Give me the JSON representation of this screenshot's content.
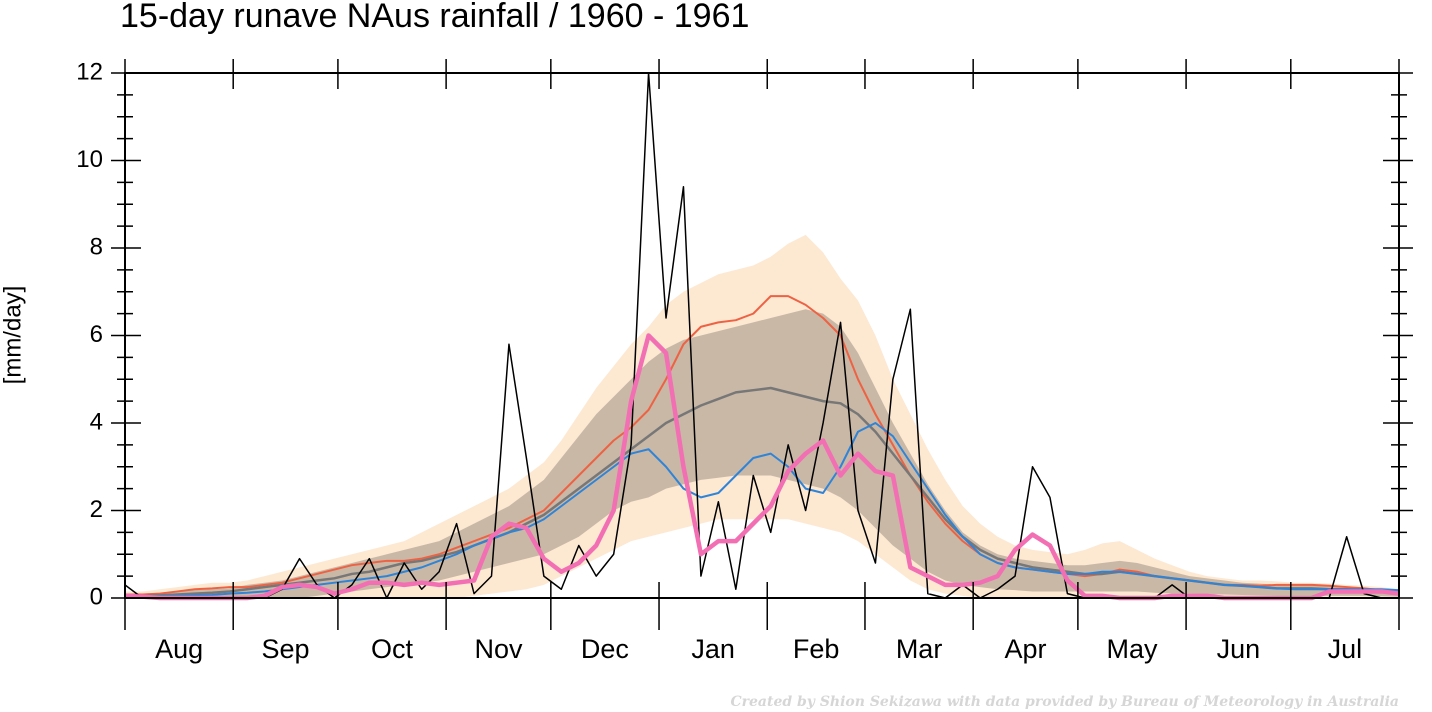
{
  "chart_data": {
    "type": "line",
    "title": "15-day runave NAus rainfall  /  1960 - 1961",
    "ylabel": "[mm/day]",
    "footer": "Created by Shion Sekizawa with data provided by Bureau of Meteorology in Australia",
    "x": [
      0,
      5,
      10,
      15,
      20,
      25,
      30,
      35,
      40,
      45,
      50,
      55,
      60,
      65,
      70,
      75,
      80,
      85,
      90,
      95,
      100,
      105,
      110,
      115,
      120,
      125,
      130,
      135,
      140,
      145,
      150,
      155,
      160,
      165,
      170,
      175,
      180,
      185,
      190,
      195,
      200,
      205,
      210,
      215,
      220,
      225,
      230,
      235,
      240,
      245,
      250,
      255,
      260,
      265,
      270,
      275,
      280,
      285,
      290,
      295,
      300,
      305,
      310,
      315,
      320,
      325,
      330,
      335,
      340,
      345,
      350,
      355,
      360,
      365
    ],
    "xlim": [
      0,
      365
    ],
    "xticks": [
      {
        "value": 15.5,
        "label": "Aug"
      },
      {
        "value": 46,
        "label": "Sep"
      },
      {
        "value": 76.5,
        "label": "Oct"
      },
      {
        "value": 107,
        "label": "Nov"
      },
      {
        "value": 137.5,
        "label": "Dec"
      },
      {
        "value": 168.5,
        "label": "Jan"
      },
      {
        "value": 198,
        "label": "Feb"
      },
      {
        "value": 227.5,
        "label": "Mar"
      },
      {
        "value": 258,
        "label": "Apr"
      },
      {
        "value": 288.5,
        "label": "May"
      },
      {
        "value": 319,
        "label": "Jun"
      },
      {
        "value": 349.5,
        "label": "Jul"
      }
    ],
    "x_major_ticks": [
      0,
      31,
      61,
      92,
      122,
      153,
      184,
      212,
      243,
      273,
      304,
      334,
      365
    ],
    "ylim": [
      0,
      12
    ],
    "yticks": [
      0,
      2,
      4,
      6,
      8,
      10,
      12
    ],
    "yminorticks": [
      0.5,
      1,
      1.5,
      2.5,
      3,
      3.5,
      4.5,
      5,
      5.5,
      6.5,
      7,
      7.5,
      8.5,
      9,
      9.5,
      10.5,
      11,
      11.5
    ],
    "bands": [
      {
        "color": "#fde8d2",
        "upper": [
          0.15,
          0.15,
          0.2,
          0.25,
          0.3,
          0.35,
          0.35,
          0.4,
          0.5,
          0.6,
          0.7,
          0.8,
          0.9,
          1.0,
          1.1,
          1.2,
          1.3,
          1.5,
          1.7,
          1.9,
          2.1,
          2.3,
          2.5,
          2.8,
          3.1,
          3.6,
          4.2,
          4.8,
          5.3,
          5.8,
          6.2,
          6.7,
          7.0,
          7.2,
          7.4,
          7.5,
          7.6,
          7.8,
          8.1,
          8.3,
          7.9,
          7.3,
          6.8,
          6.0,
          5.0,
          4.2,
          3.4,
          2.7,
          2.1,
          1.7,
          1.4,
          1.2,
          1.1,
          1.05,
          1.0,
          1.1,
          1.25,
          1.3,
          1.1,
          0.9,
          0.75,
          0.6,
          0.5,
          0.45,
          0.4,
          0.4,
          0.38,
          0.35,
          0.35,
          0.33,
          0.3,
          0.28,
          0.25,
          0.2
        ],
        "lower": [
          0,
          0,
          0,
          0,
          0,
          0,
          0,
          0,
          0,
          0,
          0,
          0,
          0,
          0,
          0,
          0,
          0,
          0,
          0,
          0,
          0.05,
          0.1,
          0.15,
          0.2,
          0.3,
          0.5,
          0.7,
          0.9,
          1.1,
          1.3,
          1.4,
          1.5,
          1.6,
          1.7,
          1.8,
          1.8,
          1.8,
          1.8,
          1.8,
          1.7,
          1.6,
          1.5,
          1.3,
          1.0,
          0.7,
          0.4,
          0.2,
          0.1,
          0.05,
          0,
          0,
          0,
          0,
          0,
          0,
          0,
          0,
          0,
          0,
          0,
          0,
          0,
          0,
          0,
          0,
          0,
          0,
          0,
          0,
          0,
          0,
          0,
          0,
          0
        ]
      },
      {
        "color": "#c9b8a6",
        "upper": [
          0.1,
          0.1,
          0.12,
          0.15,
          0.18,
          0.2,
          0.22,
          0.3,
          0.35,
          0.4,
          0.5,
          0.6,
          0.7,
          0.8,
          0.9,
          1.0,
          1.1,
          1.2,
          1.3,
          1.5,
          1.7,
          1.9,
          2.1,
          2.4,
          2.7,
          3.2,
          3.7,
          4.2,
          4.6,
          5.0,
          5.4,
          5.7,
          5.9,
          6.0,
          6.1,
          6.2,
          6.3,
          6.4,
          6.5,
          6.6,
          6.5,
          6.2,
          5.6,
          4.8,
          4.0,
          3.3,
          2.6,
          2.0,
          1.5,
          1.2,
          1.0,
          0.9,
          0.85,
          0.8,
          0.75,
          0.75,
          0.8,
          0.85,
          0.8,
          0.7,
          0.6,
          0.5,
          0.45,
          0.4,
          0.35,
          0.33,
          0.3,
          0.3,
          0.3,
          0.28,
          0.25,
          0.23,
          0.2,
          0.18
        ],
        "lower": [
          0,
          0,
          0,
          0,
          0,
          0,
          0,
          0,
          0,
          0,
          0,
          0.05,
          0.1,
          0.15,
          0.2,
          0.25,
          0.3,
          0.35,
          0.4,
          0.5,
          0.6,
          0.7,
          0.8,
          0.9,
          1.0,
          1.2,
          1.4,
          1.7,
          2.0,
          2.2,
          2.3,
          2.5,
          2.6,
          2.7,
          2.75,
          2.8,
          2.8,
          2.8,
          2.7,
          2.6,
          2.5,
          2.3,
          2.0,
          1.6,
          1.2,
          0.9,
          0.6,
          0.4,
          0.3,
          0.25,
          0.2,
          0.18,
          0.15,
          0.15,
          0.15,
          0.15,
          0.15,
          0.15,
          0.15,
          0.12,
          0.1,
          0.1,
          0.08,
          0.08,
          0.07,
          0.06,
          0.05,
          0.05,
          0.05,
          0.05,
          0.05,
          0.05,
          0.04,
          0.03
        ]
      }
    ],
    "series": [
      {
        "color": "#ee6244",
        "width": 2,
        "values": [
          0.08,
          0.08,
          0.1,
          0.15,
          0.2,
          0.22,
          0.25,
          0.25,
          0.3,
          0.35,
          0.45,
          0.55,
          0.65,
          0.75,
          0.8,
          0.85,
          0.85,
          0.9,
          1.0,
          1.15,
          1.3,
          1.45,
          1.6,
          1.8,
          2.0,
          2.4,
          2.8,
          3.2,
          3.6,
          3.9,
          4.3,
          5.0,
          5.8,
          6.2,
          6.3,
          6.35,
          6.5,
          6.9,
          6.9,
          6.7,
          6.4,
          6.0,
          5.0,
          4.2,
          3.5,
          2.8,
          2.2,
          1.7,
          1.3,
          1.0,
          0.8,
          0.7,
          0.65,
          0.6,
          0.55,
          0.5,
          0.55,
          0.65,
          0.6,
          0.5,
          0.45,
          0.4,
          0.35,
          0.3,
          0.3,
          0.28,
          0.3,
          0.3,
          0.3,
          0.28,
          0.25,
          0.22,
          0.18,
          0.15
        ]
      },
      {
        "color": "#777777",
        "width": 2.5,
        "values": [
          0.05,
          0.05,
          0.06,
          0.08,
          0.1,
          0.12,
          0.15,
          0.2,
          0.25,
          0.3,
          0.35,
          0.4,
          0.45,
          0.55,
          0.6,
          0.7,
          0.8,
          0.85,
          0.95,
          1.05,
          1.2,
          1.35,
          1.5,
          1.7,
          1.9,
          2.2,
          2.5,
          2.8,
          3.1,
          3.4,
          3.7,
          4.0,
          4.2,
          4.4,
          4.55,
          4.7,
          4.75,
          4.8,
          4.7,
          4.6,
          4.5,
          4.45,
          4.2,
          3.8,
          3.3,
          2.8,
          2.3,
          1.8,
          1.4,
          1.1,
          0.9,
          0.8,
          0.7,
          0.65,
          0.6,
          0.55,
          0.55,
          0.6,
          0.55,
          0.5,
          0.45,
          0.4,
          0.35,
          0.3,
          0.28,
          0.25,
          0.22,
          0.22,
          0.22,
          0.2,
          0.2,
          0.18,
          0.15,
          0.12
        ]
      },
      {
        "color": "#2f84d8",
        "width": 2,
        "values": [
          0.03,
          0.03,
          0.04,
          0.05,
          0.06,
          0.07,
          0.1,
          0.12,
          0.15,
          0.2,
          0.25,
          0.3,
          0.35,
          0.4,
          0.45,
          0.5,
          0.6,
          0.7,
          0.85,
          1.0,
          1.2,
          1.35,
          1.5,
          1.6,
          1.8,
          2.1,
          2.4,
          2.7,
          3.0,
          3.3,
          3.4,
          3.0,
          2.5,
          2.3,
          2.4,
          2.8,
          3.2,
          3.3,
          3.0,
          2.5,
          2.4,
          3.0,
          3.8,
          4.0,
          3.7,
          3.1,
          2.5,
          1.9,
          1.4,
          1.0,
          0.8,
          0.7,
          0.65,
          0.6,
          0.55,
          0.55,
          0.6,
          0.6,
          0.55,
          0.5,
          0.45,
          0.4,
          0.35,
          0.3,
          0.28,
          0.25,
          0.22,
          0.2,
          0.2,
          0.2,
          0.2,
          0.2,
          0.2,
          0.18
        ]
      },
      {
        "color": "#000000",
        "width": 1.5,
        "values": [
          0.3,
          0,
          0,
          0,
          0,
          0,
          0,
          0,
          0,
          0.2,
          0.9,
          0.3,
          0,
          0.3,
          0.9,
          0,
          0.8,
          0.2,
          0.6,
          1.7,
          0.1,
          0.5,
          5.8,
          3.2,
          0.5,
          0.2,
          1.2,
          0.5,
          1.0,
          3.5,
          12,
          6.4,
          9.4,
          0.5,
          2.2,
          0.2,
          2.8,
          1.5,
          3.5,
          2.0,
          4.0,
          6.3,
          2.0,
          0.8,
          5.0,
          6.6,
          0.1,
          0,
          0.3,
          0,
          0.2,
          0.5,
          3.0,
          2.3,
          0.1,
          0,
          0,
          0,
          0,
          0,
          0.3,
          0,
          0,
          0,
          0,
          0,
          0,
          0,
          0,
          0,
          1.4,
          0.1,
          0,
          0
        ]
      },
      {
        "color": "#f26fb3",
        "width": 4.5,
        "values": [
          0.05,
          0.03,
          0,
          0,
          0,
          0,
          0,
          0,
          0.05,
          0.25,
          0.3,
          0.25,
          0.1,
          0.2,
          0.35,
          0.35,
          0.3,
          0.35,
          0.3,
          0.35,
          0.4,
          1.4,
          1.7,
          1.6,
          0.9,
          0.6,
          0.8,
          1.2,
          2.0,
          4.5,
          6.0,
          5.6,
          3.0,
          1.0,
          1.3,
          1.3,
          1.7,
          2.1,
          2.9,
          3.3,
          3.6,
          2.8,
          3.3,
          2.9,
          2.8,
          0.7,
          0.5,
          0.3,
          0.3,
          0.35,
          0.5,
          1.1,
          1.45,
          1.2,
          0.4,
          0.05,
          0.05,
          0,
          0,
          0,
          0.05,
          0.05,
          0.05,
          0,
          0,
          0,
          0,
          0,
          0,
          0.15,
          0.15,
          0.15,
          0.15,
          0.1
        ]
      }
    ]
  }
}
